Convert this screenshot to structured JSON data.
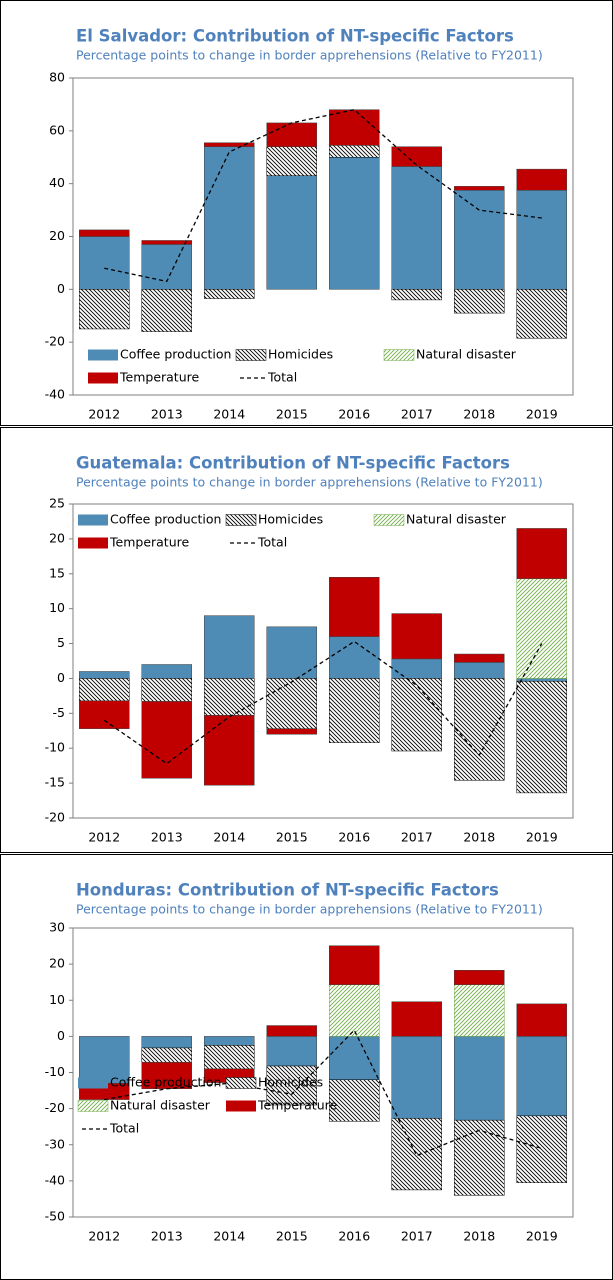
{
  "chart_data": [
    {
      "type": "bar",
      "stacked": true,
      "title": "El Salvador: Contribution of NT-specific Factors",
      "subtitle": "Percentage points to change in border apprehensions (Relative to FY2011)",
      "categories": [
        "2012",
        "2013",
        "2014",
        "2015",
        "2016",
        "2017",
        "2018",
        "2019"
      ],
      "series": [
        {
          "name": "Coffee production",
          "color": "#4f8cb5",
          "values": [
            20,
            17,
            54,
            43,
            50,
            46.5,
            37.5,
            37.5
          ]
        },
        {
          "name": "Homicides",
          "color": "#000000",
          "hatch": "back",
          "values": [
            -15,
            -16,
            -3.5,
            11,
            4.5,
            -4,
            -9,
            -18.5
          ]
        },
        {
          "name": "Natural disaster",
          "color": "#70ad47",
          "hatch": "forward",
          "values": [
            0,
            0,
            0,
            0,
            0,
            0,
            0,
            0
          ]
        },
        {
          "name": "Temperature",
          "color": "#c00000",
          "values": [
            2.5,
            1.5,
            1.5,
            9,
            13.5,
            7.5,
            1.5,
            8
          ]
        },
        {
          "name": "Total",
          "type": "line",
          "color": "#000000",
          "dashed": true,
          "values": [
            8,
            3,
            52,
            63,
            68,
            47,
            30,
            27
          ]
        }
      ],
      "ylim": [
        -40,
        80
      ],
      "yticks": [
        -40,
        -20,
        0,
        20,
        40,
        60,
        80
      ],
      "legend": {
        "position": "lower center",
        "columns": 3
      }
    },
    {
      "type": "bar",
      "stacked": true,
      "title": "Guatemala: Contribution of NT-specific Factors",
      "subtitle": "Percentage points to change in border apprehensions (Relative to FY2011)",
      "categories": [
        "2012",
        "2013",
        "2014",
        "2015",
        "2016",
        "2017",
        "2018",
        "2019"
      ],
      "series": [
        {
          "name": "Coffee production",
          "color": "#4f8cb5",
          "values": [
            1,
            2,
            9,
            7.4,
            6,
            2.8,
            2.3,
            -0.4
          ]
        },
        {
          "name": "Homicides",
          "color": "#000000",
          "hatch": "back",
          "values": [
            -3.2,
            -3.3,
            -5.3,
            -7.2,
            -9.2,
            -10.4,
            -14.6,
            -16
          ]
        },
        {
          "name": "Natural disaster",
          "color": "#70ad47",
          "hatch": "forward",
          "values": [
            0,
            0,
            0,
            0,
            0,
            0,
            0,
            14.3
          ]
        },
        {
          "name": "Temperature",
          "color": "#c00000",
          "values": [
            -4,
            -11,
            -10,
            -0.8,
            8.5,
            6.5,
            1.2,
            7.2
          ]
        },
        {
          "name": "Total",
          "type": "line",
          "color": "#000000",
          "dashed": true,
          "values": [
            -6,
            -12.2,
            -5.5,
            -0.5,
            5.3,
            -1,
            -11,
            5
          ]
        }
      ],
      "ylim": [
        -20,
        25
      ],
      "yticks": [
        -20,
        -15,
        -10,
        -5,
        0,
        5,
        10,
        15,
        20,
        25
      ],
      "legend": {
        "position": "upper left",
        "columns": 3
      }
    },
    {
      "type": "bar",
      "stacked": true,
      "title": "Honduras: Contribution of NT-specific Factors",
      "subtitle": "Percentage points to change in border apprehensions (Relative to FY2011)",
      "categories": [
        "2012",
        "2013",
        "2014",
        "2015",
        "2016",
        "2017",
        "2018",
        "2019"
      ],
      "series": [
        {
          "name": "Coffee production",
          "color": "#4f8cb5",
          "values": [
            -13,
            -3.2,
            -2.5,
            -8.2,
            -12,
            -22.7,
            -23.2,
            -22
          ]
        },
        {
          "name": "Homicides",
          "color": "#000000",
          "hatch": "back",
          "values": [
            0,
            -4,
            -6.5,
            -10.8,
            -11.5,
            -19.8,
            -20.8,
            -18.5
          ]
        },
        {
          "name": "Natural disaster",
          "color": "#70ad47",
          "hatch": "forward",
          "values": [
            0,
            0,
            0,
            0,
            14.3,
            0,
            14.3,
            0
          ]
        },
        {
          "name": "Temperature",
          "color": "#c00000",
          "values": [
            -4.5,
            -7.3,
            -3.8,
            3,
            10.8,
            9.6,
            4,
            9
          ]
        },
        {
          "name": "Total",
          "type": "line",
          "color": "#000000",
          "dashed": true,
          "values": [
            -17.5,
            -14.5,
            -13,
            -16,
            1.7,
            -33,
            -26,
            -31
          ]
        }
      ],
      "ylim": [
        -50,
        30
      ],
      "yticks": [
        -50,
        -40,
        -30,
        -20,
        -10,
        0,
        10,
        20,
        30
      ],
      "legend": {
        "position": "lower left",
        "columns": 2
      }
    }
  ]
}
